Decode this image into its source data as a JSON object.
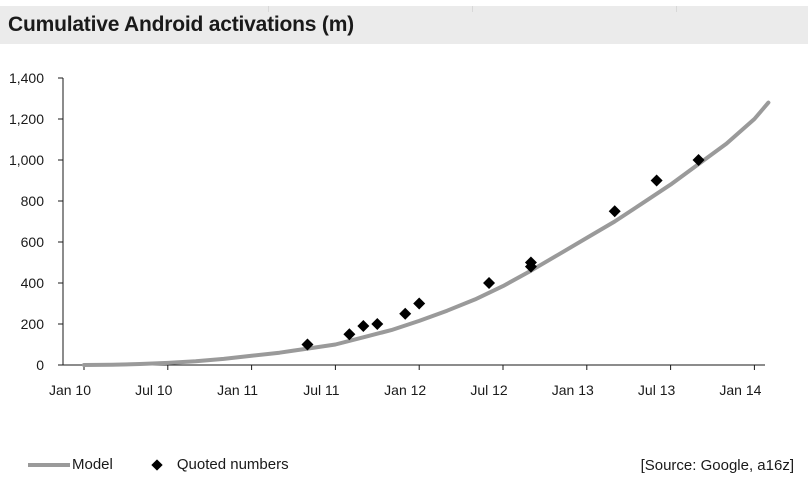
{
  "title": "Cumulative Android activations (m)",
  "source": "[Source: Google, a16z]",
  "legend": {
    "model_label": "Model",
    "quoted_label": "Quoted numbers"
  },
  "colors": {
    "model_line": "#9a9a9a",
    "quoted_marker": "#000000",
    "title_bg": "#ebebeb"
  },
  "chart_data": {
    "type": "line",
    "title": "Cumulative Android activations (m)",
    "xlabel": "",
    "ylabel": "",
    "ylim": [
      0,
      1400
    ],
    "yticks": [
      0,
      200,
      400,
      600,
      800,
      1000,
      1200,
      1400
    ],
    "ytick_labels": [
      "0",
      "200",
      "400",
      "600",
      "800",
      "1,000",
      "1,200",
      "1,400"
    ],
    "xticks": [
      "Jan 10",
      "Jul 10",
      "Jan 11",
      "Jul 11",
      "Jan 12",
      "Jul 12",
      "Jan 13",
      "Jul 13",
      "Jan 14"
    ],
    "x_axis_start": "2010-01",
    "legend_position": "bottom-left",
    "grid": false,
    "series": [
      {
        "name": "Model",
        "kind": "line",
        "points": [
          [
            "2010-01",
            0
          ],
          [
            "2010-03",
            1
          ],
          [
            "2010-05",
            5
          ],
          [
            "2010-07",
            10
          ],
          [
            "2010-09",
            18
          ],
          [
            "2010-11",
            30
          ],
          [
            "2011-01",
            45
          ],
          [
            "2011-03",
            60
          ],
          [
            "2011-04",
            70
          ],
          [
            "2011-05",
            80
          ],
          [
            "2011-07",
            100
          ],
          [
            "2011-09",
            135
          ],
          [
            "2011-11",
            170
          ],
          [
            "2012-01",
            215
          ],
          [
            "2012-03",
            265
          ],
          [
            "2012-05",
            320
          ],
          [
            "2012-07",
            385
          ],
          [
            "2012-09",
            460
          ],
          [
            "2012-11",
            540
          ],
          [
            "2013-01",
            620
          ],
          [
            "2013-03",
            700
          ],
          [
            "2013-05",
            790
          ],
          [
            "2013-07",
            880
          ],
          [
            "2013-09",
            980
          ],
          [
            "2013-11",
            1080
          ],
          [
            "2014-01",
            1200
          ],
          [
            "2014-02",
            1280
          ]
        ]
      },
      {
        "name": "Quoted numbers",
        "kind": "scatter",
        "points": [
          [
            "2011-05",
            100
          ],
          [
            "2011-08",
            150
          ],
          [
            "2011-09",
            190
          ],
          [
            "2011-10",
            200
          ],
          [
            "2011-12",
            250
          ],
          [
            "2012-01",
            300
          ],
          [
            "2012-06",
            400
          ],
          [
            "2012-09",
            480
          ],
          [
            "2012-09",
            500
          ],
          [
            "2013-03",
            750
          ],
          [
            "2013-06",
            900
          ],
          [
            "2013-09",
            1000
          ]
        ]
      }
    ]
  }
}
